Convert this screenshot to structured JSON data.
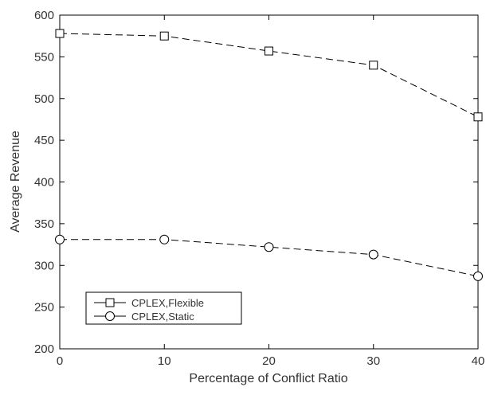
{
  "chart_data": {
    "type": "line",
    "title": "",
    "xlabel": "Percentage of Conflict Ratio",
    "ylabel": "Average Revenue",
    "x": [
      0,
      10,
      20,
      30,
      40
    ],
    "xlim": [
      0,
      40
    ],
    "ylim": [
      200,
      600
    ],
    "xticks": [
      "0",
      "10",
      "20",
      "30",
      "40"
    ],
    "yticks": [
      "200",
      "250",
      "300",
      "350",
      "400",
      "450",
      "500",
      "550",
      "600"
    ],
    "grid": false,
    "legend_position": "bottom-left",
    "series": [
      {
        "name": "CPLEX,Flexible",
        "marker": "square",
        "line_style": "dashed",
        "values": [
          578,
          575,
          557,
          540,
          478
        ]
      },
      {
        "name": "CPLEX,Static",
        "marker": "circle",
        "line_style": "dashed",
        "values": [
          331,
          331,
          322,
          313,
          287
        ]
      }
    ]
  }
}
